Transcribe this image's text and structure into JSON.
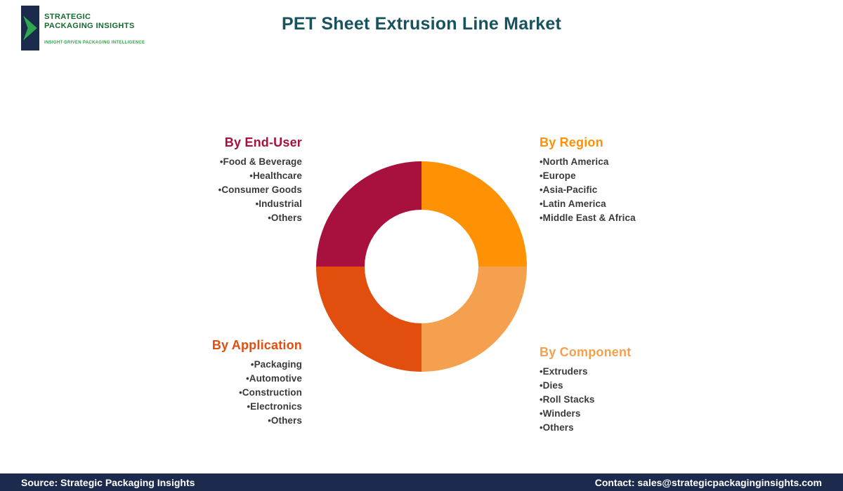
{
  "title": "PET Sheet Extrusion Line Market",
  "logo": {
    "name_line1": "STRATEGIC",
    "name_line2": "PACKAGING INSIGHTS",
    "tagline": "INSIGHT-DRIVEN PACKAGING INTELLIGENCE"
  },
  "colors": {
    "title": "#17525F",
    "footer_bg": "#1B2A4D",
    "logo_box": "#1B2A4D",
    "logo_arrow": "#2FA84F",
    "logo_text": "#156A2E",
    "logo_tagline": "#33A04A"
  },
  "chart_data": {
    "type": "pie",
    "donut": true,
    "title": "PET Sheet Extrusion Line Market",
    "legend_position": "corner labels around donut",
    "slices": [
      {
        "label": "By Region",
        "value": 25,
        "color": "#FF9104"
      },
      {
        "label": "By Component",
        "value": 25,
        "color": "#F4A04E"
      },
      {
        "label": "By Application",
        "value": 25,
        "color": "#E14E0E"
      },
      {
        "label": "By End-User",
        "value": 25,
        "color": "#A8113E"
      }
    ]
  },
  "segments": [
    {
      "heading": "By End-User",
      "color": "#A8113E",
      "items": [
        "Food & Beverage",
        "Healthcare",
        "Consumer Goods",
        "Industrial",
        "Others"
      ]
    },
    {
      "heading": "By Region",
      "color": "#FF9104",
      "items": [
        "North America",
        "Europe",
        "Asia-Pacific",
        "Latin America",
        "Middle East & Africa"
      ]
    },
    {
      "heading": "By Application",
      "color": "#E14E0E",
      "items": [
        "Packaging",
        "Automotive",
        "Construction",
        "Electronics",
        "Others"
      ]
    },
    {
      "heading": "By Component",
      "color": "#F4A04E",
      "items": [
        "Extruders",
        "Dies",
        "Roll Stacks",
        "Winders",
        "Others"
      ]
    }
  ],
  "footer": {
    "source": "Source: Strategic Packaging Insights",
    "contact": "Contact: sales@strategicpackaginginsights.com"
  }
}
